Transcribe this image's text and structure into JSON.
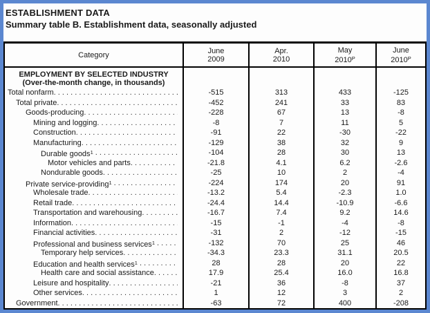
{
  "header": {
    "kicker": "ESTABLISHMENT DATA",
    "title": "Summary table B. Establishment data, seasonally adjusted"
  },
  "table": {
    "category_header": "Category",
    "columns": [
      {
        "line1": "June",
        "line2": "2009",
        "sup": ""
      },
      {
        "line1": "Apr.",
        "line2": "2010",
        "sup": ""
      },
      {
        "line1": "May",
        "line2": "2010",
        "sup": "P"
      },
      {
        "line1": "June",
        "line2": "2010",
        "sup": "P"
      }
    ],
    "section_header": {
      "line1": "EMPLOYMENT BY SELECTED INDUSTRY",
      "line2": "(Over-the-month change, in thousands)"
    },
    "rows": [
      {
        "label": "Total nonfarm",
        "sup": "",
        "indent": 0,
        "values": [
          "-515",
          "313",
          "433",
          "-125"
        ]
      },
      {
        "label": "Total private",
        "sup": "",
        "indent": 1,
        "values": [
          "-452",
          "241",
          "33",
          "83"
        ]
      },
      {
        "label": "Goods-producing",
        "sup": "",
        "indent": 2,
        "values": [
          "-228",
          "67",
          "13",
          "-8"
        ]
      },
      {
        "label": "Mining and logging",
        "sup": "",
        "indent": 3,
        "values": [
          "-8",
          "7",
          "11",
          "5"
        ]
      },
      {
        "label": "Construction",
        "sup": "",
        "indent": 3,
        "values": [
          "-91",
          "22",
          "-30",
          "-22"
        ]
      },
      {
        "label": "Manufacturing",
        "sup": "",
        "indent": 3,
        "values": [
          "-129",
          "38",
          "32",
          "9"
        ]
      },
      {
        "label": "Durable goods",
        "sup": "1",
        "indent": 4,
        "values": [
          "-104",
          "28",
          "30",
          "13"
        ]
      },
      {
        "label": "Motor vehicles and parts",
        "sup": "",
        "indent": 5,
        "values": [
          "-21.8",
          "4.1",
          "6.2",
          "-2.6"
        ]
      },
      {
        "label": "Nondurable goods",
        "sup": "",
        "indent": 4,
        "values": [
          "-25",
          "10",
          "2",
          "-4"
        ]
      },
      {
        "label": "Private service-providing",
        "sup": "1",
        "indent": 2,
        "values": [
          "-224",
          "174",
          "20",
          "91"
        ]
      },
      {
        "label": "Wholesale trade",
        "sup": "",
        "indent": 3,
        "values": [
          "-13.2",
          "5.4",
          "-2.3",
          "1.0"
        ]
      },
      {
        "label": "Retail trade",
        "sup": "",
        "indent": 3,
        "values": [
          "-24.4",
          "14.4",
          "-10.9",
          "-6.6"
        ]
      },
      {
        "label": "Transportation and warehousing",
        "sup": "",
        "indent": 3,
        "values": [
          "-16.7",
          "7.4",
          "9.2",
          "14.6"
        ]
      },
      {
        "label": "Information",
        "sup": "",
        "indent": 3,
        "values": [
          "-15",
          "-1",
          "-4",
          "-8"
        ]
      },
      {
        "label": "Financial activities",
        "sup": "",
        "indent": 3,
        "values": [
          "-31",
          "2",
          "-12",
          "-15"
        ]
      },
      {
        "label": "Professional and business services",
        "sup": "1",
        "indent": 3,
        "values": [
          "-132",
          "70",
          "25",
          "46"
        ]
      },
      {
        "label": "Temporary help services",
        "sup": "",
        "indent": 4,
        "values": [
          "-34.3",
          "23.3",
          "31.1",
          "20.5"
        ]
      },
      {
        "label": "Education and health services",
        "sup": "1",
        "indent": 3,
        "values": [
          "28",
          "28",
          "20",
          "22"
        ]
      },
      {
        "label": "Health care and social assistance",
        "sup": "",
        "indent": 4,
        "values": [
          "17.9",
          "25.4",
          "16.0",
          "16.8"
        ]
      },
      {
        "label": "Leisure and hospitality",
        "sup": "",
        "indent": 3,
        "values": [
          "-21",
          "36",
          "-8",
          "37"
        ]
      },
      {
        "label": "Other services",
        "sup": "",
        "indent": 3,
        "values": [
          "1",
          "12",
          "3",
          "2"
        ]
      },
      {
        "label": "Government",
        "sup": "",
        "indent": 1,
        "values": [
          "-63",
          "72",
          "400",
          "-208"
        ]
      }
    ]
  },
  "colors": {
    "window_border": "#5b87d0",
    "table_border": "#000000",
    "text": "#1a1a1a"
  }
}
